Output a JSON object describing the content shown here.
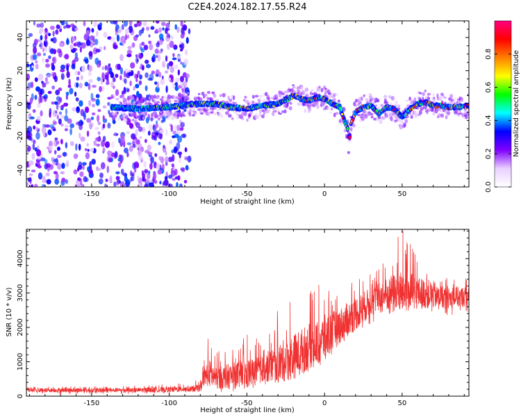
{
  "title": "C2E4.2024.182.17.55.R24",
  "chart_data": [
    {
      "type": "heatmap",
      "xlabel": "Height of straight line (km)",
      "ylabel": "Frequency (Hz)",
      "xlim": [
        -192,
        93
      ],
      "ylim": [
        -50,
        50
      ],
      "xticks": [
        -150,
        -100,
        -50,
        0,
        50
      ],
      "xtick_labels": [
        "-150",
        "-100",
        "-50",
        "0",
        "50"
      ],
      "yticks": [
        -40,
        -20,
        0,
        20,
        40
      ],
      "ytick_labels": [
        "-40",
        "-20",
        "0",
        "20",
        "40"
      ],
      "colorbar": {
        "label": "Normalized spectral amplitude",
        "range": [
          0.0,
          1.0
        ],
        "ticks": [
          0.0,
          0.2,
          0.4,
          0.6,
          0.8
        ],
        "tick_labels": [
          "0.0",
          "0.2",
          "0.4",
          "0.6",
          "0.8"
        ],
        "colors": [
          "#ffffff",
          "#ead0ff",
          "#8000ff",
          "#0000ff",
          "#00ffff",
          "#00ff00",
          "#ffff00",
          "#ff8000",
          "#ff0000",
          "#ff0080"
        ]
      },
      "noise_region_km": [
        -192,
        -87
      ],
      "ridge": {
        "x": [
          -137,
          -120,
          -100,
          -85,
          -70,
          -60,
          -50,
          -40,
          -30,
          -20,
          -15,
          -10,
          -5,
          0,
          5,
          10,
          12,
          15,
          16,
          17,
          20,
          25,
          30,
          35,
          40,
          45,
          50,
          55,
          60,
          65,
          70,
          75,
          80,
          85,
          93
        ],
        "y": [
          -2,
          -3,
          -2,
          0,
          0,
          -2,
          -3,
          -1,
          0,
          5,
          3,
          2,
          4,
          3,
          0,
          -2,
          -8,
          -15,
          -23,
          -12,
          -5,
          -2,
          -1,
          -6,
          -2,
          -3,
          -8,
          -3,
          0,
          1,
          -1,
          -1,
          -2,
          -2,
          -1
        ],
        "peak_amplitude": 0.95
      }
    },
    {
      "type": "line",
      "xlabel": "Height of straight line (km)",
      "ylabel": "SNR (10 * v/v)",
      "xlim": [
        -192,
        93
      ],
      "ylim": [
        0,
        4850
      ],
      "xticks": [
        -150,
        -100,
        -50,
        0,
        50
      ],
      "xtick_labels": [
        "-150",
        "-100",
        "-50",
        "0",
        "50"
      ],
      "yticks": [
        0,
        1000,
        2000,
        3000,
        4000
      ],
      "ytick_labels": [
        "0",
        "1000",
        "2000",
        "3000",
        "4000"
      ],
      "line_color": "#f03232",
      "envelope": {
        "x": [
          -192,
          -150,
          -120,
          -100,
          -90,
          -80,
          -75,
          -70,
          -65,
          -60,
          -50,
          -40,
          -30,
          -20,
          -10,
          0,
          10,
          20,
          30,
          40,
          50,
          60,
          70,
          80,
          93
        ],
        "base": [
          60,
          60,
          70,
          80,
          90,
          100,
          200,
          150,
          120,
          140,
          160,
          250,
          380,
          500,
          700,
          900,
          1250,
          1700,
          2100,
          2350,
          2450,
          2400,
          2350,
          2350,
          2400
        ],
        "mid": [
          180,
          170,
          175,
          190,
          210,
          230,
          700,
          500,
          550,
          580,
          650,
          800,
          950,
          1150,
          1450,
          1700,
          2050,
          2400,
          2750,
          2950,
          3050,
          3000,
          2950,
          2850,
          2900
        ],
        "top": [
          270,
          280,
          300,
          350,
          400,
          480,
          1700,
          1300,
          1400,
          1500,
          1800,
          1600,
          2500,
          2900,
          3100,
          3300,
          3100,
          3500,
          3600,
          4100,
          4850,
          4100,
          3800,
          3400,
          3500
        ]
      }
    }
  ]
}
